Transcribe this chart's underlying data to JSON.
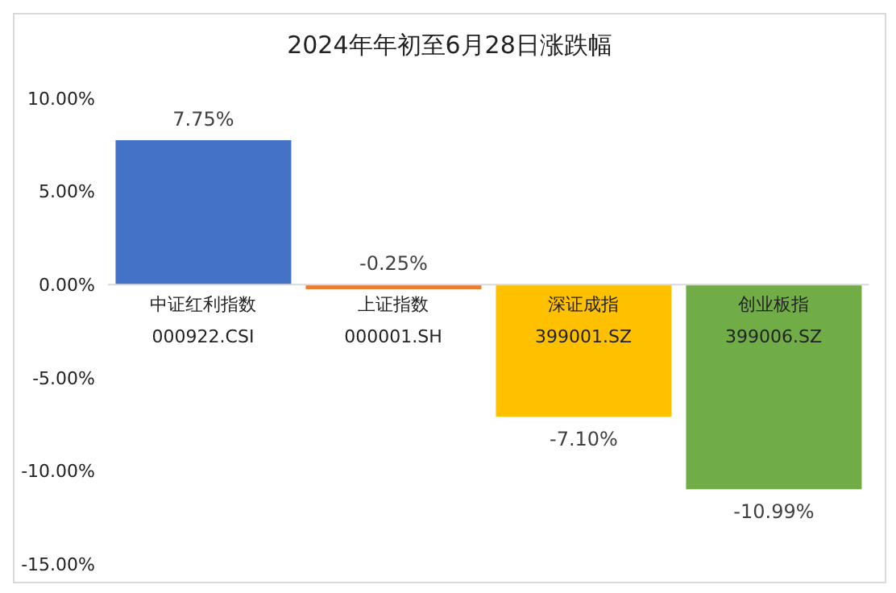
{
  "chart_data": {
    "type": "bar",
    "title": "2024年年初至6月28日涨跌幅",
    "categories": [
      "中证红利指数\n000922.CSI",
      "上证指数\n000001.SH",
      "深证成指\n399001.SZ",
      "创业板指\n399006.SZ"
    ],
    "values": [
      7.75,
      -0.25,
      -7.1,
      -10.99
    ],
    "colors": [
      "#4472c4",
      "#ed7d31",
      "#ffc000",
      "#70ad47"
    ],
    "value_labels": [
      "7.75%",
      "-0.25%",
      "-7.10%",
      "-10.99%"
    ],
    "ylim": [
      -15,
      10
    ],
    "yticks": [
      {
        "value": -15,
        "label": "-15.00%"
      },
      {
        "value": -10,
        "label": "-10.00%"
      },
      {
        "value": -5,
        "label": "-5.00%"
      },
      {
        "value": 0,
        "label": "0.00%"
      },
      {
        "value": 5,
        "label": "5.00%"
      },
      {
        "value": 10,
        "label": "10.00%"
      }
    ],
    "grid": false,
    "legend": false
  }
}
